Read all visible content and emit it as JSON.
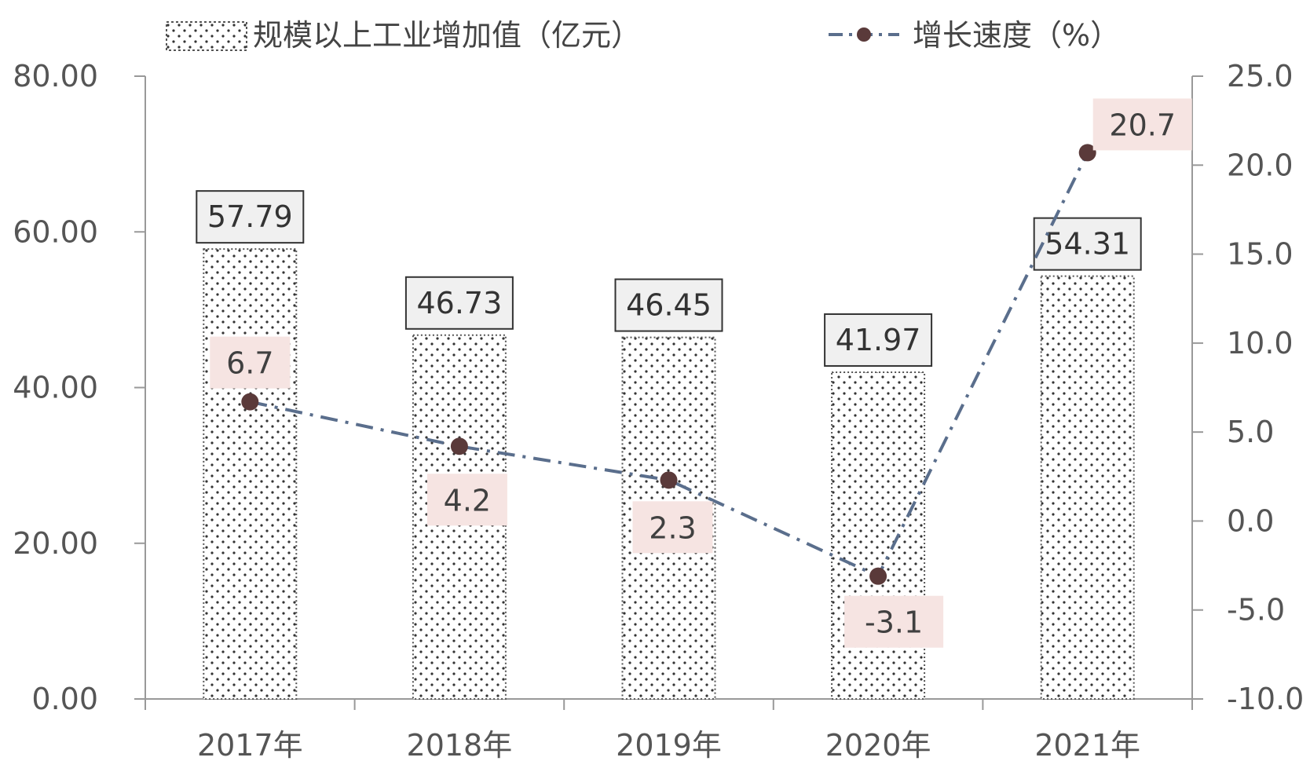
{
  "chart_data": {
    "type": "bar",
    "categories": [
      "2017年",
      "2018年",
      "2019年",
      "2020年",
      "2021年"
    ],
    "series": [
      {
        "name": "规模以上工业增加值（亿元）",
        "type": "bar",
        "axis": "left",
        "values": [
          57.79,
          46.73,
          46.45,
          41.97,
          54.31
        ],
        "labels": [
          "57.79",
          "46.73",
          "46.45",
          "41.97",
          "54.31"
        ]
      },
      {
        "name": "增长速度（%）",
        "type": "line",
        "axis": "right",
        "values": [
          6.7,
          4.2,
          2.3,
          -3.1,
          20.7
        ],
        "labels": [
          "6.7",
          "4.2",
          "2.3",
          "-3.1",
          "20.7"
        ]
      }
    ],
    "left_axis": {
      "ylim": [
        0,
        80
      ],
      "ticks": [
        0,
        20,
        40,
        60,
        80
      ],
      "tick_labels": [
        "0.00",
        "20.00",
        "40.00",
        "60.00",
        "80.00"
      ]
    },
    "right_axis": {
      "ylim": [
        -10,
        25
      ],
      "ticks": [
        -10,
        -5,
        0,
        5,
        10,
        15,
        20,
        25
      ],
      "tick_labels": [
        "-10.0",
        "-5.0",
        "0.0",
        "5.0",
        "10.0",
        "15.0",
        "20.0",
        "25.0"
      ]
    },
    "legend_position": "top-center",
    "grid": false,
    "colors": {
      "bar_dots": "#333333",
      "bar_outline": "#555555",
      "line": "#5a6e8c",
      "marker": "#5a3a3a",
      "line_label_bg": "#f6e4e2",
      "bar_label_bg": "#f0f0f0",
      "axis": "#999999"
    }
  }
}
